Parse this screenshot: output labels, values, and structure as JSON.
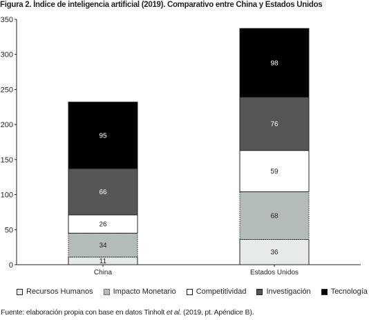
{
  "title": "Figura 2. Índice de inteligencia artificial (2019). Comparativo entre China y Estados Unidos",
  "source": {
    "prefix": "Fuente: elaboración propia con base en datos Tinholt ",
    "italic": "et al.",
    "suffix": " (2019, pt. Apéndice B)."
  },
  "chart_data": {
    "type": "bar",
    "stacked": true,
    "title": "Figura 2. Índice de inteligencia artificial (2019). Comparativo entre China y Estados Unidos",
    "categories": [
      "China",
      "Estados Unidos"
    ],
    "ylim": [
      0,
      350
    ],
    "yticks": [
      0,
      50,
      100,
      150,
      200,
      250,
      300,
      350
    ],
    "legend_position": "bottom",
    "series": [
      {
        "name": "Recursos Humanos",
        "values": [
          11,
          36
        ],
        "color": "#e7eaea",
        "dashed": false
      },
      {
        "name": "Impacto Monetario",
        "values": [
          34,
          68
        ],
        "color": "#b3bcbb",
        "dashed": true
      },
      {
        "name": "Competitividad",
        "values": [
          26,
          59
        ],
        "color": "#ffffff",
        "dashed": false
      },
      {
        "name": "Investigación",
        "values": [
          66,
          76
        ],
        "color": "#555756",
        "dashed": false
      },
      {
        "name": "Tecnología",
        "values": [
          95,
          98
        ],
        "color": "#000000",
        "dashed": false
      }
    ]
  }
}
